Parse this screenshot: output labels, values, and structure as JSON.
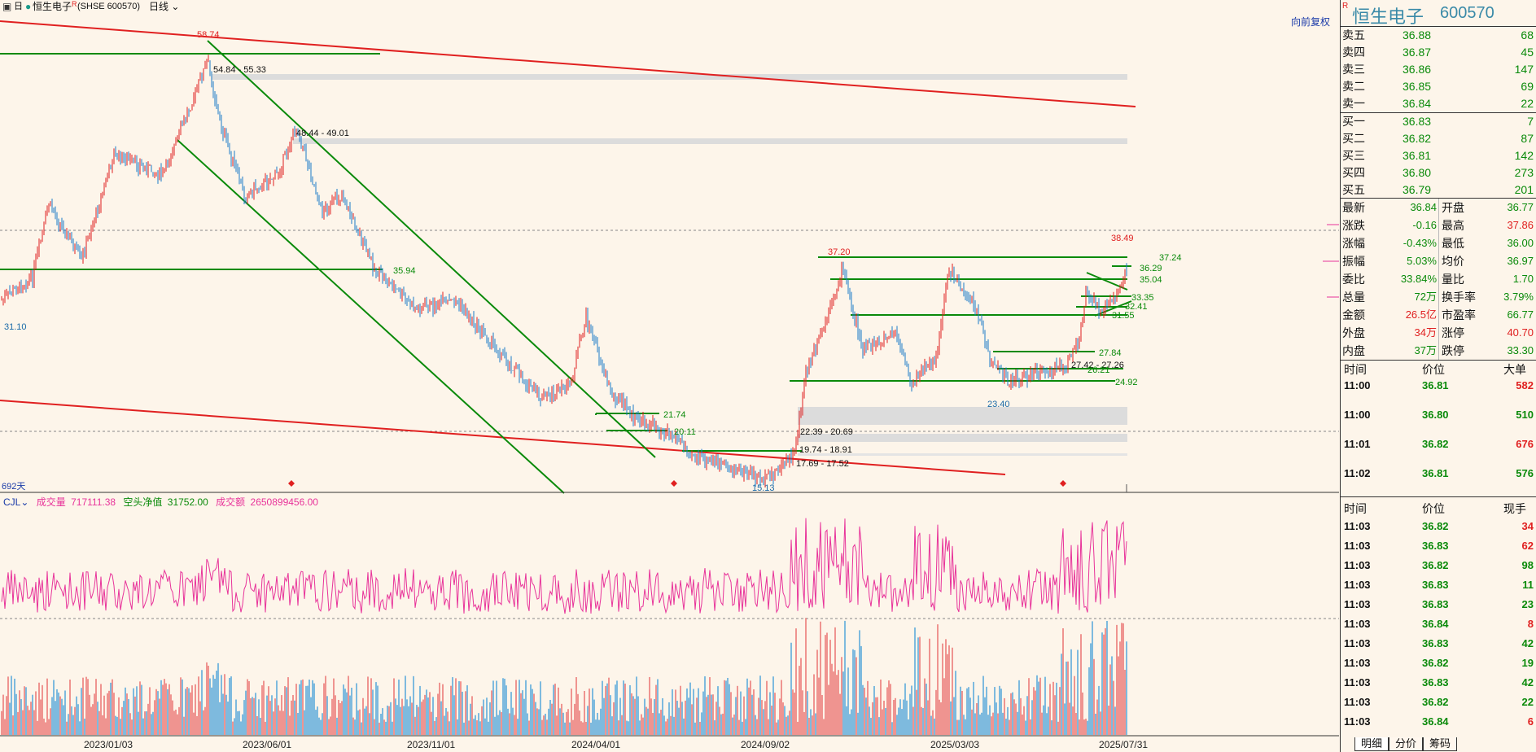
{
  "topbar": {
    "tool_label": "日",
    "stock_name": "恒生电子",
    "stock_suffix": "R",
    "exchange": "(SHSE 600570)",
    "period": "日线"
  },
  "chart": {
    "price_labels": {
      "high_main": "58.74",
      "zone1": "54.84 - 55.33",
      "zone2": "48.44 - 49.01",
      "support1": "35.94",
      "low_left": "31.10",
      "l2174": "21.74",
      "l2011": "20.11",
      "zone3": "22.39 - 20.69",
      "zone4": "19.74 - 18.91",
      "zone5": "17.69 - 17.52",
      "low_mid": "15.13",
      "high_mid": "37.20",
      "low_right": "23.40",
      "high_right": "38.49",
      "r3724": "37.24",
      "r3629": "36.29",
      "r3504": "35.04",
      "r3335": "33.35",
      "r3241": "32.41",
      "r3155": "31.55",
      "r2784": "27.84",
      "zone6": "27.42 - 27.26",
      "r2621": "26.21",
      "r2492": "24.92"
    },
    "day_count": "692天",
    "go_forward": "向前复权",
    "indicator": {
      "name": "CJL",
      "vol_label": "成交量",
      "vol_value": "717111.38",
      "net_label": "空头净值",
      "net_value": "31752.00",
      "amt_label": "成交额",
      "amt_value": "2650899456.00"
    },
    "dates": [
      "2023/01/03",
      "2023/06/01",
      "2023/11/01",
      "2024/04/01",
      "2024/09/02",
      "2025/03/03",
      "2025/07/31"
    ]
  },
  "panel": {
    "badge": "R",
    "name": "恒生电子",
    "code": "600570",
    "asks": [
      {
        "label": "卖五",
        "price": "36.88",
        "vol": "68"
      },
      {
        "label": "卖四",
        "price": "36.87",
        "vol": "45"
      },
      {
        "label": "卖三",
        "price": "36.86",
        "vol": "147"
      },
      {
        "label": "卖二",
        "price": "36.85",
        "vol": "69"
      },
      {
        "label": "卖一",
        "price": "36.84",
        "vol": "22"
      }
    ],
    "bids": [
      {
        "label": "买一",
        "price": "36.83",
        "vol": "7"
      },
      {
        "label": "买二",
        "price": "36.82",
        "vol": "87"
      },
      {
        "label": "买三",
        "price": "36.81",
        "vol": "142"
      },
      {
        "label": "买四",
        "price": "36.80",
        "vol": "273"
      },
      {
        "label": "买五",
        "price": "36.79",
        "vol": "201"
      }
    ],
    "stats_left": [
      {
        "label": "最新",
        "value": "36.84",
        "color": "#0a8a0a"
      },
      {
        "label": "涨跌",
        "value": "-0.16",
        "color": "#0a8a0a"
      },
      {
        "label": "涨幅",
        "value": "-0.43%",
        "color": "#0a8a0a"
      },
      {
        "label": "振幅",
        "value": "5.03%",
        "color": "#0a8a0a"
      },
      {
        "label": "委比",
        "value": "33.84%",
        "color": "#0a8a0a"
      },
      {
        "label": "总量",
        "value": "72万",
        "color": "#0a8a0a"
      },
      {
        "label": "金额",
        "value": "26.5亿",
        "color": "#e02020"
      },
      {
        "label": "外盘",
        "value": "34万",
        "color": "#e02020"
      },
      {
        "label": "内盘",
        "value": "37万",
        "color": "#0a8a0a"
      }
    ],
    "stats_right": [
      {
        "label": "开盘",
        "value": "36.77",
        "color": "#0a8a0a"
      },
      {
        "label": "最高",
        "value": "37.86",
        "color": "#e02020"
      },
      {
        "label": "最低",
        "value": "36.00",
        "color": "#0a8a0a"
      },
      {
        "label": "均价",
        "value": "36.97",
        "color": "#0a8a0a"
      },
      {
        "label": "量比",
        "value": "1.70",
        "color": "#0a8a0a"
      },
      {
        "label": "换手率",
        "value": "3.79%",
        "color": "#0a8a0a"
      },
      {
        "label": "市盈率",
        "value": "66.77",
        "color": "#0a8a0a"
      },
      {
        "label": "涨停",
        "value": "40.70",
        "color": "#e02020"
      },
      {
        "label": "跌停",
        "value": "33.30",
        "color": "#0a8a0a"
      }
    ],
    "big_header": {
      "time": "时间",
      "price": "价位",
      "vol": "大单"
    },
    "big_orders": [
      {
        "time": "11:00",
        "price": "36.81",
        "vol": "582",
        "color": "#e02020"
      },
      {
        "time": "11:00",
        "price": "36.80",
        "vol": "510",
        "color": "#0a8a0a"
      },
      {
        "time": "11:01",
        "price": "36.82",
        "vol": "676",
        "color": "#e02020"
      },
      {
        "time": "11:02",
        "price": "36.81",
        "vol": "576",
        "color": "#0a8a0a"
      }
    ],
    "tick_header": {
      "time": "时间",
      "price": "价位",
      "vol": "现手"
    },
    "ticks": [
      {
        "time": "11:03",
        "price": "36.82",
        "vol": "34",
        "color": "#e02020"
      },
      {
        "time": "11:03",
        "price": "36.83",
        "vol": "62",
        "color": "#e02020"
      },
      {
        "time": "11:03",
        "price": "36.82",
        "vol": "98",
        "color": "#0a8a0a"
      },
      {
        "time": "11:03",
        "price": "36.83",
        "vol": "11",
        "color": "#0a8a0a"
      },
      {
        "time": "11:03",
        "price": "36.83",
        "vol": "23",
        "color": "#0a8a0a"
      },
      {
        "time": "11:03",
        "price": "36.84",
        "vol": "8",
        "color": "#e02020"
      },
      {
        "time": "11:03",
        "price": "36.83",
        "vol": "42",
        "color": "#0a8a0a"
      },
      {
        "time": "11:03",
        "price": "36.82",
        "vol": "19",
        "color": "#0a8a0a"
      },
      {
        "time": "11:03",
        "price": "36.83",
        "vol": "42",
        "color": "#0a8a0a"
      },
      {
        "time": "11:03",
        "price": "36.82",
        "vol": "22",
        "color": "#0a8a0a"
      },
      {
        "time": "11:03",
        "price": "36.84",
        "vol": "6",
        "color": "#e02020"
      }
    ],
    "tabs": [
      "明细",
      "分价",
      "筹码"
    ]
  }
}
